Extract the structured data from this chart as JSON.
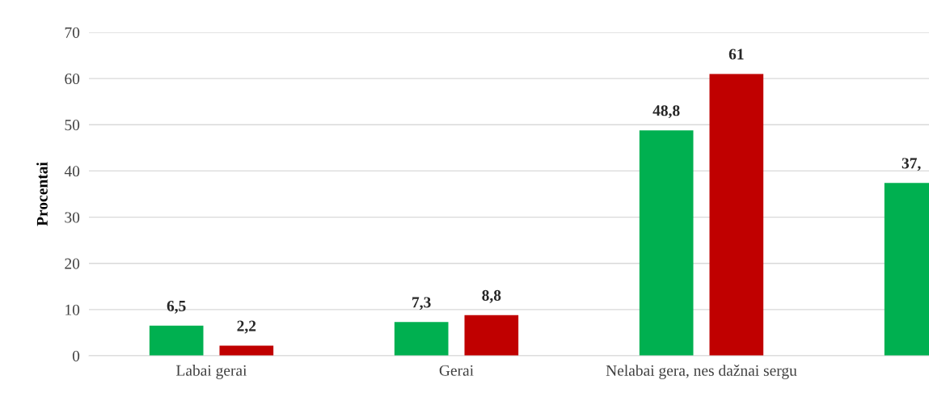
{
  "chart_data": {
    "type": "bar",
    "ylabel": "Procentai",
    "categories": [
      "Labai gerai",
      "Gerai",
      "Nelabai gera, nes dažnai sergu",
      null
    ],
    "series": [
      {
        "color": "#00b050",
        "values": [
          6.5,
          7.3,
          48.8,
          37.4
        ],
        "value_labels": [
          "6,5",
          "7,3",
          "48,8",
          "37,"
        ]
      },
      {
        "color": "#c00000",
        "values": [
          2.2,
          8.8,
          61,
          null
        ],
        "value_labels": [
          "2,2",
          "8,8",
          "61",
          null
        ]
      }
    ],
    "ylim": [
      0,
      70
    ],
    "yticks": [
      0,
      10,
      20,
      30,
      40,
      50,
      60,
      70
    ],
    "grid": "y",
    "legend": false
  }
}
